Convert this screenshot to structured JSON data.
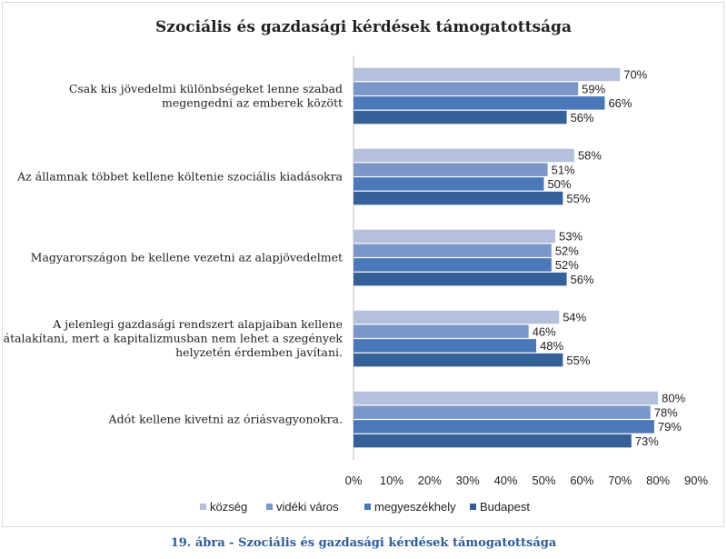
{
  "chart_data": {
    "type": "bar",
    "orientation": "horizontal",
    "title": "Szociális és gazdasági kérdések támogatottsága",
    "categories": [
      [
        "Csak kis jövedelmi különbségeket lenne szabad",
        "megengedni az emberek között"
      ],
      [
        "Az államnak többet kellene költenie szociális kiadásokra"
      ],
      [
        "Magyarországon be kellene vezetni az alapjövedelmet"
      ],
      [
        "A jelenlegi gazdasági rendszert alapjaiban kellene",
        "átalakítani, mert a kapitalizmusban nem lehet a szegények",
        "helyzetén érdemben javítani."
      ],
      [
        "Adót kellene kivetni az óriásvagyonokra."
      ]
    ],
    "series": [
      {
        "name": "község",
        "color": "#b4c0dc",
        "values": [
          70,
          58,
          53,
          54,
          80
        ]
      },
      {
        "name": "vidéki város",
        "color": "#7b96c8",
        "values": [
          59,
          51,
          52,
          46,
          78
        ]
      },
      {
        "name": "megyeszékhely",
        "color": "#4a78b8",
        "values": [
          66,
          50,
          52,
          48,
          79
        ]
      },
      {
        "name": "Budapest",
        "color": "#35609a",
        "values": [
          56,
          55,
          56,
          55,
          73
        ]
      }
    ],
    "xlim": [
      0,
      90
    ],
    "xticks": [
      "0%",
      "10%",
      "20%",
      "30%",
      "40%",
      "50%",
      "60%",
      "70%",
      "80%",
      "90%"
    ],
    "value_suffix": "%",
    "grid": false,
    "legend_position": "bottom"
  },
  "caption": "19. ábra - Szociális és gazdasági kérdések támogatottsága"
}
